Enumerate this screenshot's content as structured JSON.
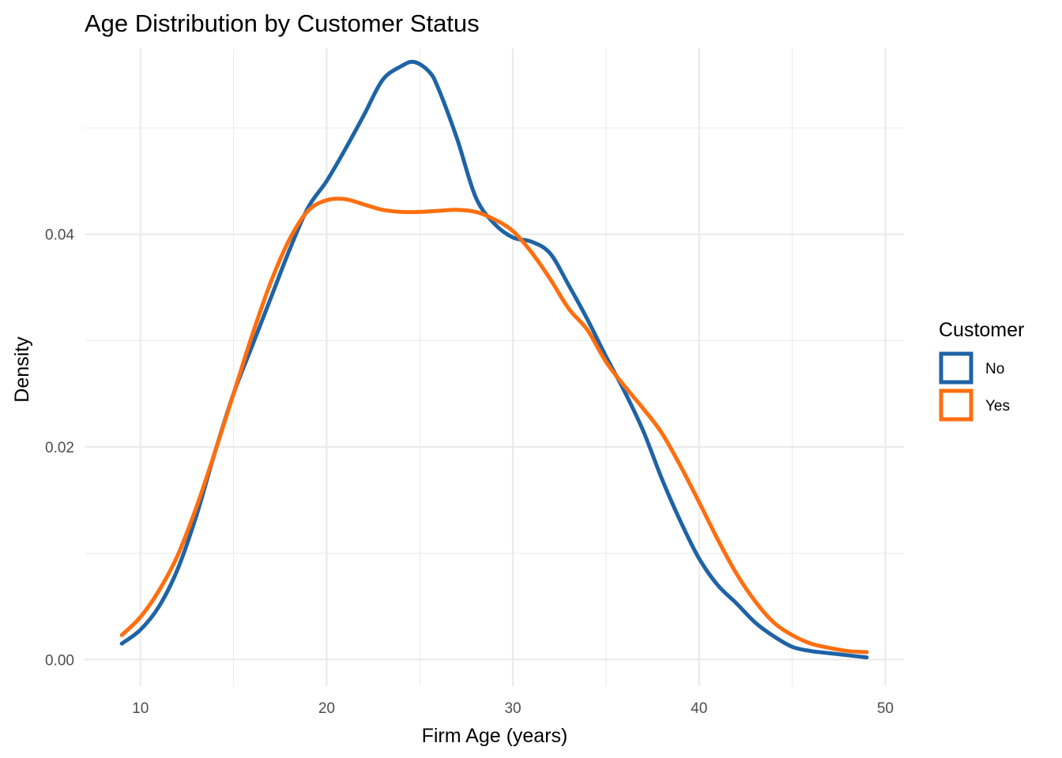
{
  "chart_data": {
    "type": "line",
    "title": "Age Distribution by Customer Status",
    "xlabel": "Firm Age (years)",
    "ylabel": "Density",
    "xlim": [
      7,
      51
    ],
    "ylim": [
      -0.0025,
      0.0575
    ],
    "x_ticks": [
      10,
      20,
      30,
      40,
      50
    ],
    "x_tick_labels": [
      "10",
      "20",
      "30",
      "40",
      "50"
    ],
    "y_ticks": [
      0.0,
      0.02,
      0.04
    ],
    "y_tick_labels": [
      "0.00",
      "0.02",
      "0.04"
    ],
    "grid": true,
    "legend": {
      "title": "Customer",
      "position": "right"
    },
    "series": [
      {
        "name": "No",
        "color": "#1f63a6",
        "x": [
          9,
          10,
          11,
          12,
          13,
          14,
          15,
          16,
          17,
          18,
          19,
          20,
          21,
          22,
          23,
          24,
          24.7,
          25.5,
          26,
          27,
          28,
          29,
          30,
          31,
          32,
          33,
          34,
          35,
          36,
          37,
          38,
          39,
          40,
          41,
          42,
          43,
          44,
          45,
          46,
          47,
          48,
          49
        ],
        "y": [
          0.0015,
          0.0028,
          0.005,
          0.0085,
          0.0135,
          0.0195,
          0.025,
          0.0295,
          0.034,
          0.0385,
          0.0425,
          0.045,
          0.048,
          0.0512,
          0.0545,
          0.0558,
          0.0562,
          0.0553,
          0.0537,
          0.049,
          0.0435,
          0.041,
          0.0397,
          0.0393,
          0.0382,
          0.0352,
          0.032,
          0.0285,
          0.0252,
          0.0215,
          0.017,
          0.013,
          0.0095,
          0.007,
          0.0053,
          0.0035,
          0.0022,
          0.0012,
          0.0008,
          0.0006,
          0.0004,
          0.0002
        ]
      },
      {
        "name": "Yes",
        "color": "#ff6e0f",
        "x": [
          9,
          10,
          11,
          12,
          13,
          14,
          15,
          16,
          17,
          18,
          19,
          20,
          21,
          22,
          23,
          24,
          25,
          26,
          27,
          28,
          29,
          30,
          31,
          32,
          33,
          34,
          35,
          36,
          37,
          38,
          39,
          40,
          41,
          42,
          43,
          44,
          45,
          46,
          47,
          48,
          49
        ],
        "y": [
          0.0023,
          0.004,
          0.0065,
          0.0098,
          0.0143,
          0.0195,
          0.025,
          0.0305,
          0.0355,
          0.0395,
          0.0422,
          0.0432,
          0.0433,
          0.0428,
          0.0423,
          0.0421,
          0.0421,
          0.0422,
          0.0423,
          0.0421,
          0.0414,
          0.0403,
          0.0383,
          0.0358,
          0.033,
          0.031,
          0.028,
          0.0257,
          0.0236,
          0.0213,
          0.0182,
          0.0148,
          0.0113,
          0.0081,
          0.0055,
          0.0035,
          0.0023,
          0.0015,
          0.0011,
          0.0008,
          0.0007
        ]
      }
    ]
  }
}
